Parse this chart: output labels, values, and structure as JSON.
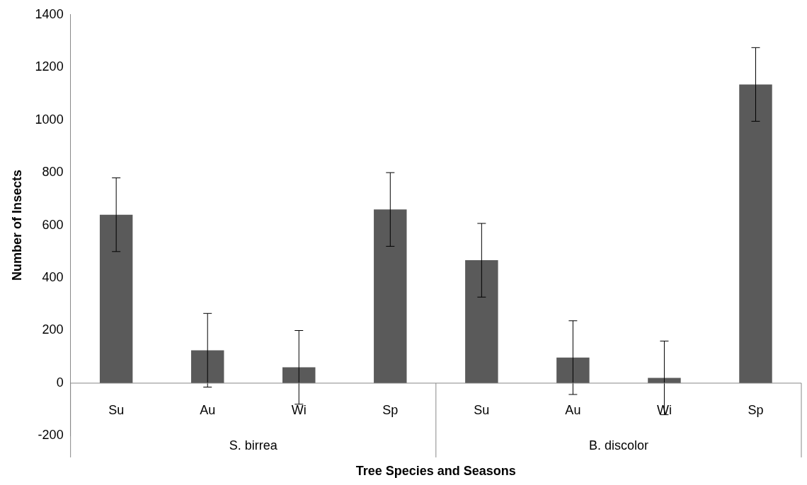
{
  "chart_data": {
    "type": "bar",
    "xlabel": "Tree Species and Seasons",
    "ylabel": "Number of Insects",
    "categories": [
      "Su",
      "Au",
      "Wi",
      "Sp",
      "Su",
      "Au",
      "Wi",
      "Sp"
    ],
    "values": [
      640,
      125,
      60,
      660,
      467,
      97,
      20,
      1135
    ],
    "errors": [
      140,
      140,
      140,
      140,
      140,
      140,
      140,
      140
    ],
    "color": "#5a5a5a",
    "ylim": [
      -200,
      1400
    ],
    "yticks": [
      -200,
      0,
      200,
      400,
      600,
      800,
      1000,
      1200,
      1400
    ],
    "annotations": [
      "S. birrea",
      "B. discolor"
    ]
  }
}
